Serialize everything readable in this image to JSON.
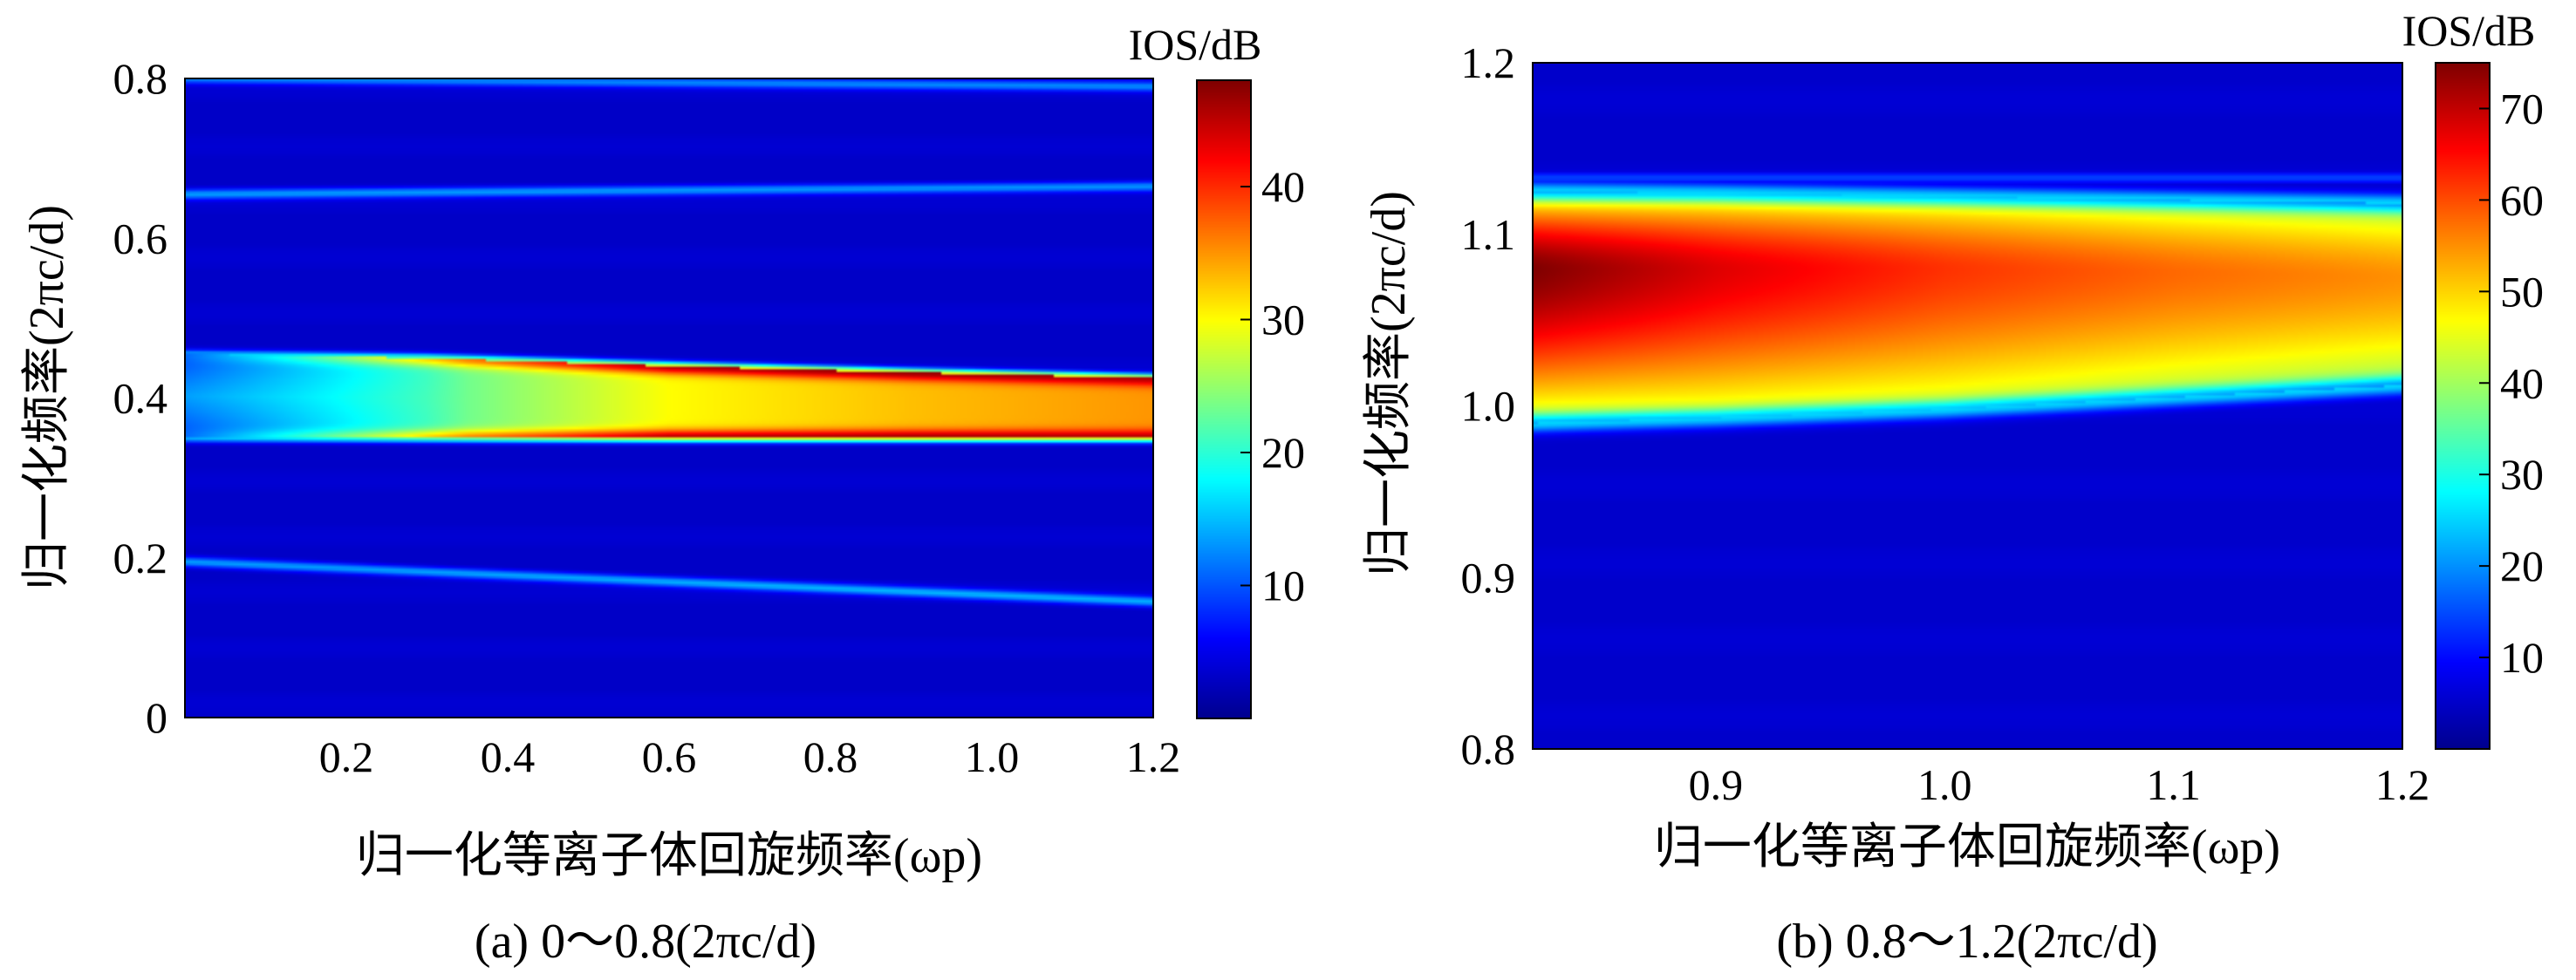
{
  "figure": {
    "panels": [
      {
        "id": "a",
        "caption": "(a) 0～0.8(2πc/d)",
        "colorbar": {
          "label": "IOS/dB",
          "ticks": [
            "10",
            "20",
            "30",
            "40"
          ]
        }
      },
      {
        "id": "b",
        "caption": "(b) 0.8～1.2(2πc/d)",
        "colorbar": {
          "label": "IOS/dB",
          "ticks": [
            "10",
            "20",
            "30",
            "40",
            "50",
            "60",
            "70"
          ]
        }
      }
    ]
  },
  "colors": {
    "colormap": "jet",
    "jet_stops": [
      "#00008f",
      "#0000ff",
      "#0080ff",
      "#00ffff",
      "#80ff80",
      "#ffff00",
      "#ff8000",
      "#ff0000",
      "#800000"
    ]
  },
  "chart_data": [
    {
      "type": "heatmap",
      "title": "",
      "xlabel": "归一化等离子体回旋频率(ωp)",
      "ylabel": "归一化频率(2πc/d)",
      "xlim": [
        0,
        1.2
      ],
      "ylim": [
        0,
        0.8
      ],
      "x_ticks": [
        0.2,
        0.4,
        0.6,
        0.8,
        1.0,
        1.2
      ],
      "x_tick_labels": [
        "0.2",
        "0.4",
        "0.6",
        "0.8",
        "1.0",
        "1.2"
      ],
      "y_ticks": [
        0,
        0.2,
        0.4,
        0.6,
        0.8
      ],
      "y_tick_labels": [
        "0",
        "0.2",
        "0.4",
        "0.6",
        "0.8"
      ],
      "zlabel": "IOS/dB",
      "zlim": [
        0,
        48
      ],
      "background_value": 3,
      "features": [
        {
          "kind": "line",
          "description": "weak band",
          "x": [
            0,
            1.2
          ],
          "y": [
            0.8,
            0.79
          ],
          "value": 12
        },
        {
          "kind": "line",
          "description": "weak band",
          "x": [
            0,
            1.2
          ],
          "y": [
            0.655,
            0.665
          ],
          "value": 13
        },
        {
          "kind": "line",
          "description": "weak band",
          "x": [
            0,
            1.2
          ],
          "y": [
            0.195,
            0.145
          ],
          "value": 14
        },
        {
          "kind": "band",
          "description": "main band",
          "x": [
            0,
            0.3,
            0.6,
            0.9,
            1.2
          ],
          "y_upper": [
            0.455,
            0.45,
            0.44,
            0.432,
            0.425
          ],
          "y_lower": [
            0.35,
            0.35,
            0.35,
            0.35,
            0.35
          ],
          "edge_value": [
            20,
            34,
            46,
            47,
            46
          ],
          "center_value": [
            18,
            22,
            30,
            33,
            35
          ]
        }
      ]
    },
    {
      "type": "heatmap",
      "title": "",
      "xlabel": "归一化等离子体回旋频率(ωp)",
      "ylabel": "归一化频率(2πc/d)",
      "xlim": [
        0.82,
        1.2
      ],
      "ylim": [
        0.8,
        1.2
      ],
      "x_ticks": [
        0.9,
        1.0,
        1.1,
        1.2
      ],
      "x_tick_labels": [
        "0.9",
        "1.0",
        "1.1",
        "1.2"
      ],
      "y_ticks": [
        0.8,
        0.9,
        1.0,
        1.1,
        1.2
      ],
      "y_tick_labels": [
        "0.8",
        "0.9",
        "1.0",
        "1.1",
        "1.2"
      ],
      "zlabel": "IOS/dB",
      "zlim": [
        0,
        75
      ],
      "background_value": 5,
      "features": [
        {
          "kind": "band",
          "description": "main band",
          "x": [
            0.82,
            0.9,
            1.0,
            1.1,
            1.2
          ],
          "y_upper": [
            1.125,
            1.124,
            1.122,
            1.12,
            1.118
          ],
          "y_lower": [
            0.99,
            0.993,
            0.998,
            1.005,
            1.012
          ],
          "peak_y": [
            1.08,
            1.08,
            1.08,
            1.078,
            1.075
          ],
          "peak_value": [
            75,
            68,
            62,
            58,
            55
          ],
          "edge_value": [
            40,
            42,
            42,
            40,
            38
          ]
        },
        {
          "kind": "line",
          "description": "weak band",
          "x": [
            0.82,
            1.2
          ],
          "y": [
            1.133,
            1.133
          ],
          "value": 14
        }
      ]
    }
  ]
}
